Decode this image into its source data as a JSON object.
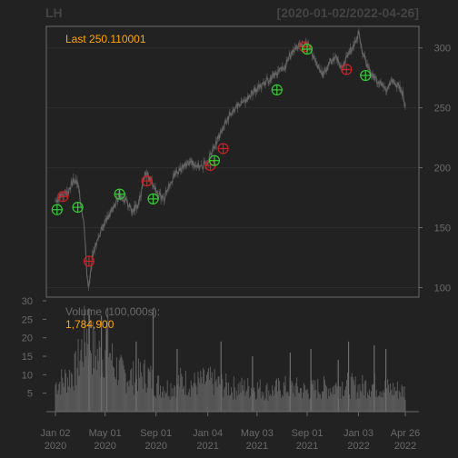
{
  "chart_data": {
    "type": "line",
    "symbol": "LH",
    "date_range": "[2020-01-02/2022-04-26]",
    "last_label": "Last 250.110001",
    "price_axis": {
      "ylim": [
        92,
        318
      ],
      "ticks": [
        100,
        150,
        200,
        250,
        300
      ]
    },
    "volume_axis": {
      "ylim": [
        0,
        31
      ],
      "ticks": [
        5,
        10,
        15,
        20,
        25,
        30
      ],
      "units_label": "Volume (100,000s):",
      "last_value_label": "1,784,900"
    },
    "x_range": [
      "2020-01-02",
      "2022-04-26"
    ],
    "x_ticks": [
      {
        "date": "2020-01-02",
        "label1": "Jan 02",
        "label2": "2020"
      },
      {
        "date": "2020-05-01",
        "label1": "May 01",
        "label2": "2020"
      },
      {
        "date": "2020-09-01",
        "label1": "Sep 01",
        "label2": "2020"
      },
      {
        "date": "2021-01-04",
        "label1": "Jan 04",
        "label2": "2021"
      },
      {
        "date": "2021-05-03",
        "label1": "May 03",
        "label2": "2021"
      },
      {
        "date": "2021-09-01",
        "label1": "Sep 01",
        "label2": "2021"
      },
      {
        "date": "2022-01-03",
        "label1": "Jan 03",
        "label2": "2022"
      },
      {
        "date": "2022-04-26",
        "label1": "Apr 26",
        "label2": "2022"
      }
    ],
    "price_series": [
      [
        "2020-01-02",
        172
      ],
      [
        "2020-01-15",
        176
      ],
      [
        "2020-02-01",
        180
      ],
      [
        "2020-02-15",
        190
      ],
      [
        "2020-02-25",
        186
      ],
      [
        "2020-03-05",
        168
      ],
      [
        "2020-03-12",
        150
      ],
      [
        "2020-03-18",
        112
      ],
      [
        "2020-03-23",
        100
      ],
      [
        "2020-04-01",
        128
      ],
      [
        "2020-04-15",
        142
      ],
      [
        "2020-05-01",
        155
      ],
      [
        "2020-05-20",
        165
      ],
      [
        "2020-06-05",
        178
      ],
      [
        "2020-06-20",
        172
      ],
      [
        "2020-07-05",
        165
      ],
      [
        "2020-07-20",
        168
      ],
      [
        "2020-08-05",
        195
      ],
      [
        "2020-08-20",
        190
      ],
      [
        "2020-09-05",
        178
      ],
      [
        "2020-09-20",
        174
      ],
      [
        "2020-10-05",
        188
      ],
      [
        "2020-10-20",
        196
      ],
      [
        "2020-11-05",
        200
      ],
      [
        "2020-11-20",
        205
      ],
      [
        "2020-12-05",
        203
      ],
      [
        "2020-12-20",
        200
      ],
      [
        "2021-01-04",
        206
      ],
      [
        "2021-01-20",
        218
      ],
      [
        "2021-02-05",
        230
      ],
      [
        "2021-02-20",
        240
      ],
      [
        "2021-03-05",
        248
      ],
      [
        "2021-03-20",
        252
      ],
      [
        "2021-04-05",
        256
      ],
      [
        "2021-04-20",
        262
      ],
      [
        "2021-05-03",
        266
      ],
      [
        "2021-05-20",
        270
      ],
      [
        "2021-06-05",
        275
      ],
      [
        "2021-06-20",
        279
      ],
      [
        "2021-07-05",
        282
      ],
      [
        "2021-07-20",
        292
      ],
      [
        "2021-08-05",
        300
      ],
      [
        "2021-08-20",
        302
      ],
      [
        "2021-09-01",
        304
      ],
      [
        "2021-09-10",
        299
      ],
      [
        "2021-09-25",
        284
      ],
      [
        "2021-10-10",
        278
      ],
      [
        "2021-10-25",
        288
      ],
      [
        "2021-11-10",
        292
      ],
      [
        "2021-11-25",
        283
      ],
      [
        "2021-12-10",
        295
      ],
      [
        "2021-12-25",
        305
      ],
      [
        "2022-01-03",
        312
      ],
      [
        "2022-01-10",
        300
      ],
      [
        "2022-01-25",
        285
      ],
      [
        "2022-02-10",
        275
      ],
      [
        "2022-02-25",
        270
      ],
      [
        "2022-03-10",
        265
      ],
      [
        "2022-03-25",
        272
      ],
      [
        "2022-04-10",
        268
      ],
      [
        "2022-04-20",
        262
      ],
      [
        "2022-04-26",
        250
      ]
    ],
    "buy_signals": [
      [
        "2020-01-06",
        165
      ],
      [
        "2020-02-25",
        167
      ],
      [
        "2020-06-05",
        178
      ],
      [
        "2020-08-25",
        174
      ],
      [
        "2021-01-20",
        206
      ],
      [
        "2021-06-20",
        265
      ],
      [
        "2021-09-01",
        299
      ],
      [
        "2022-01-20",
        277
      ]
    ],
    "sell_signals": [
      [
        "2020-01-20",
        176
      ],
      [
        "2020-03-23",
        122
      ],
      [
        "2020-08-10",
        189
      ],
      [
        "2021-01-10",
        202
      ],
      [
        "2021-02-10",
        216
      ],
      [
        "2021-08-25",
        301
      ],
      [
        "2021-12-05",
        282
      ]
    ],
    "volume_profile": [
      [
        "2020-01-02",
        8
      ],
      [
        "2020-02-01",
        10
      ],
      [
        "2020-02-20",
        12
      ],
      [
        "2020-03-10",
        20
      ],
      [
        "2020-03-20",
        24
      ],
      [
        "2020-04-05",
        17
      ],
      [
        "2020-04-25",
        16
      ],
      [
        "2020-05-05",
        22
      ],
      [
        "2020-05-20",
        14
      ],
      [
        "2020-06-10",
        11
      ],
      [
        "2020-07-10",
        10
      ],
      [
        "2020-08-10",
        11
      ],
      [
        "2020-09-01",
        8
      ],
      [
        "2020-10-01",
        7
      ],
      [
        "2020-11-01",
        9
      ],
      [
        "2020-12-01",
        8
      ],
      [
        "2021-01-04",
        9
      ],
      [
        "2021-02-01",
        8
      ],
      [
        "2021-03-01",
        7
      ],
      [
        "2021-04-01",
        7
      ],
      [
        "2021-05-01",
        7
      ],
      [
        "2021-06-01",
        6
      ],
      [
        "2021-07-01",
        7
      ],
      [
        "2021-08-01",
        7
      ],
      [
        "2021-09-01",
        6
      ],
      [
        "2021-10-01",
        7
      ],
      [
        "2021-11-01",
        7
      ],
      [
        "2021-12-01",
        8
      ],
      [
        "2022-01-03",
        7
      ],
      [
        "2022-02-01",
        8
      ],
      [
        "2022-03-01",
        7
      ],
      [
        "2022-04-26",
        6
      ]
    ],
    "volume_spikes": [
      [
        "2020-03-23",
        28
      ],
      [
        "2020-04-22",
        26
      ],
      [
        "2020-05-05",
        22
      ],
      [
        "2020-07-15",
        19
      ],
      [
        "2020-08-25",
        28
      ],
      [
        "2020-10-22",
        17
      ],
      [
        "2021-02-05",
        19
      ],
      [
        "2021-04-22",
        15
      ],
      [
        "2021-07-22",
        16
      ],
      [
        "2021-09-10",
        17
      ],
      [
        "2021-11-15",
        14
      ],
      [
        "2021-12-10",
        19
      ],
      [
        "2022-02-10",
        18
      ],
      [
        "2022-03-10",
        17
      ]
    ],
    "colors": {
      "background": "#222222",
      "price_line": "#666666",
      "volume_bars": "#5a5a5a",
      "buy_marker": "#33cc33",
      "sell_marker": "#cc2222",
      "label_orange": "#ffa500",
      "grid": "#2d2d2d",
      "frame": "#6a6a6a"
    }
  }
}
